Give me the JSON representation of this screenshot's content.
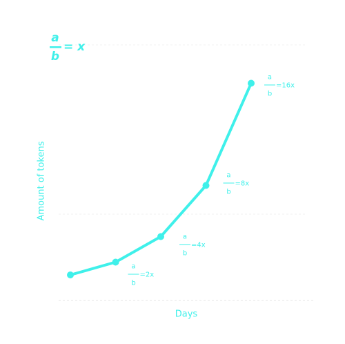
{
  "chart_data": {
    "type": "line",
    "formula": {
      "numerator": "a",
      "denominator": "b",
      "result": "= x"
    },
    "xlabel": "Days",
    "ylabel": "Amount of tokens",
    "categories": [
      null,
      null,
      null,
      null,
      null
    ],
    "values": [
      1,
      2,
      4,
      8,
      16
    ],
    "value_labels": [
      null,
      "=2x",
      "=4x",
      "=8x",
      "=16x"
    ],
    "ylim": [
      -1,
      19
    ],
    "color": "#3ff0ea"
  }
}
